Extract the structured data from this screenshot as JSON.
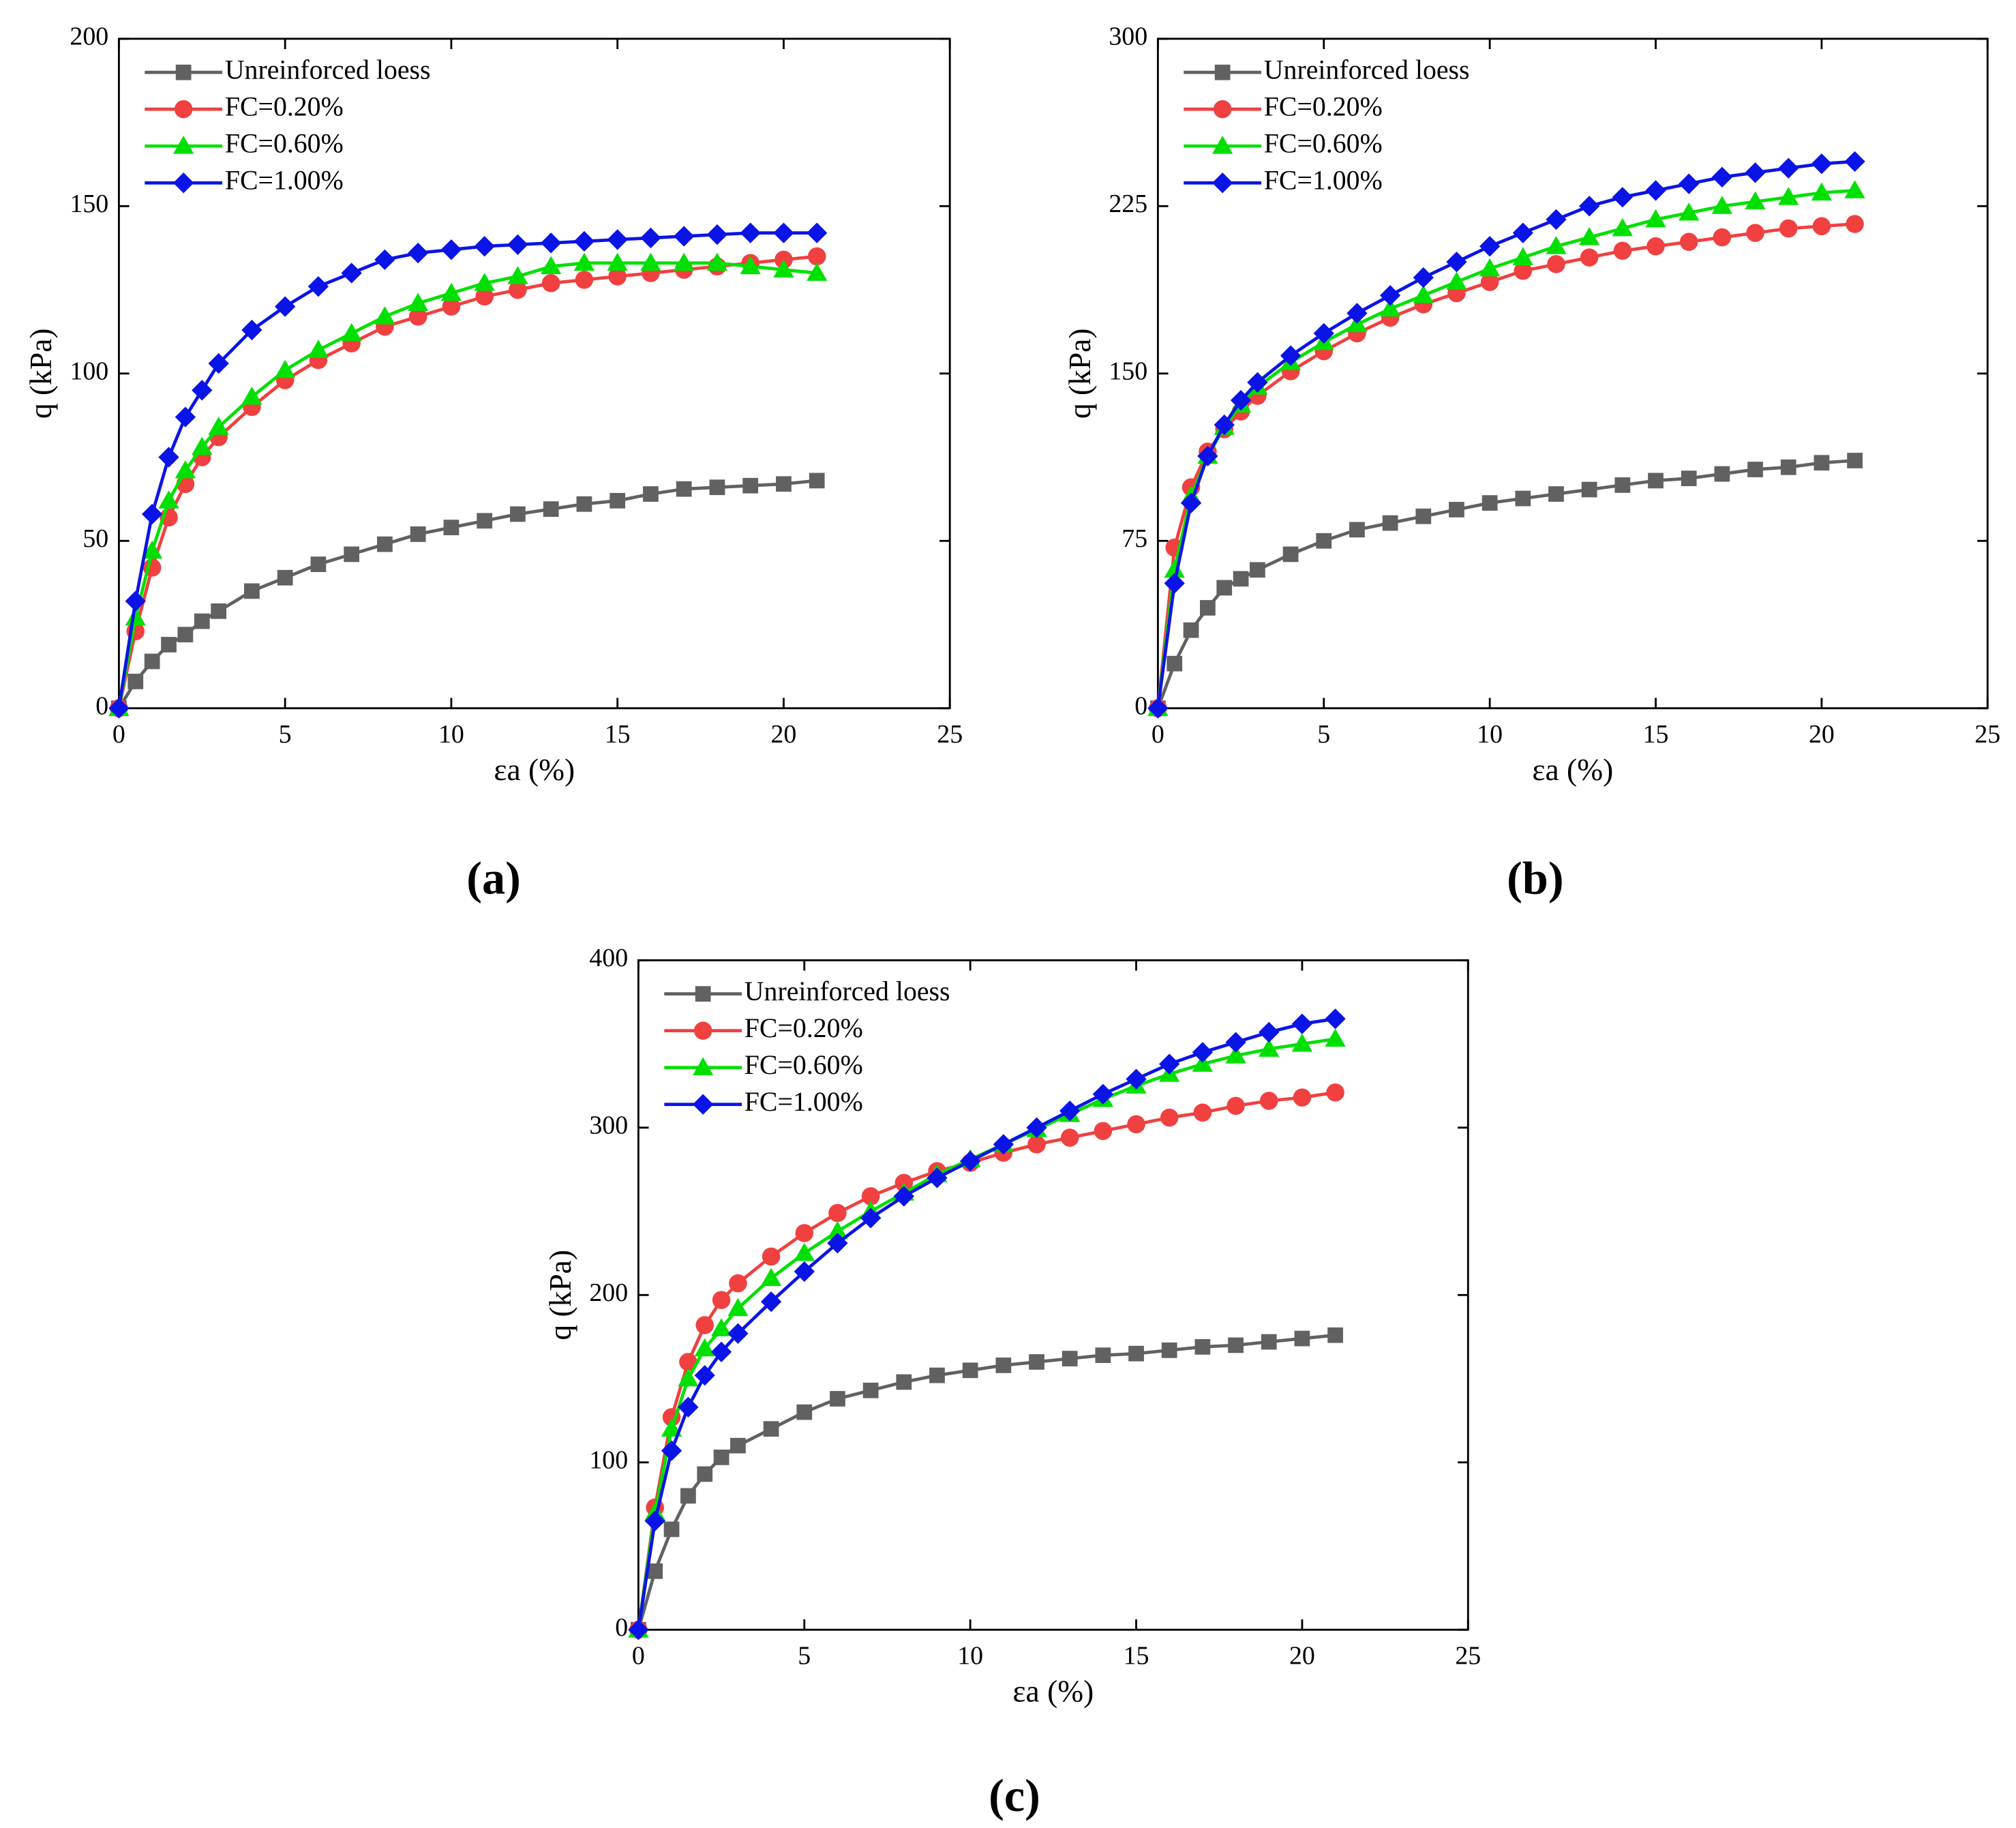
{
  "chart_data": [
    {
      "type": "line",
      "panel": "(a)",
      "xlabel": "εa (%)",
      "ylabel": "q (kPa)",
      "xlim": [
        0,
        25
      ],
      "xticks": [
        0,
        5,
        10,
        15,
        20,
        25
      ],
      "ylim": [
        0,
        200
      ],
      "yticks": [
        0,
        50,
        100,
        150,
        200
      ],
      "x": [
        0,
        0.5,
        1,
        1.5,
        2,
        2.5,
        3,
        4,
        5,
        6,
        7,
        8,
        9,
        10,
        11,
        12,
        13,
        14,
        15,
        16,
        17,
        18,
        19,
        20,
        21
      ],
      "series": [
        {
          "name": "Unreinforced loess",
          "color": "#616161",
          "marker": "square",
          "values": [
            0,
            8,
            14,
            19,
            22,
            26,
            29,
            35,
            39,
            43,
            46,
            49,
            52,
            54,
            56,
            58,
            59.5,
            61,
            62,
            64,
            65.5,
            66,
            66.5,
            67,
            68
          ]
        },
        {
          "name": "FC=0.20%",
          "color": "#f04040",
          "marker": "circle",
          "values": [
            0,
            23,
            42,
            57,
            67,
            75,
            81,
            90,
            98,
            104,
            109,
            114,
            117,
            120,
            123,
            125,
            127,
            128,
            129,
            130,
            131,
            132,
            133,
            134,
            135
          ]
        },
        {
          "name": "FC=0.60%",
          "color": "#00e000",
          "marker": "triangle",
          "values": [
            0,
            27,
            47,
            62,
            71,
            78,
            84,
            93,
            101,
            107,
            112,
            117,
            121,
            124,
            127,
            129,
            132,
            133,
            133,
            133,
            133,
            133,
            132,
            131,
            130
          ]
        },
        {
          "name": "FC=1.00%",
          "color": "#0a14e6",
          "marker": "diamond",
          "values": [
            0,
            32,
            58,
            75,
            87,
            95,
            103,
            113,
            120,
            126,
            130,
            134,
            136,
            137,
            138,
            138.5,
            139,
            139.5,
            140,
            140.5,
            141,
            141.5,
            142,
            142,
            142
          ]
        }
      ]
    },
    {
      "type": "line",
      "panel": "(b)",
      "xlabel": "εa (%)",
      "ylabel": "q (kPa)",
      "xlim": [
        0,
        25
      ],
      "xticks": [
        0,
        5,
        10,
        15,
        20,
        25
      ],
      "ylim": [
        0,
        300
      ],
      "yticks": [
        0,
        75,
        150,
        225,
        300
      ],
      "x": [
        0,
        0.5,
        1,
        1.5,
        2,
        2.5,
        3,
        4,
        5,
        6,
        7,
        8,
        9,
        10,
        11,
        12,
        13,
        14,
        15,
        16,
        17,
        18,
        19,
        20,
        21
      ],
      "series": [
        {
          "name": "Unreinforced loess",
          "color": "#616161",
          "marker": "square",
          "values": [
            0,
            20,
            35,
            45,
            54,
            58,
            62,
            69,
            75,
            80,
            83,
            86,
            89,
            92,
            94,
            96,
            98,
            100,
            102,
            103,
            105,
            107,
            108,
            110,
            111
          ]
        },
        {
          "name": "FC=0.20%",
          "color": "#f04040",
          "marker": "circle",
          "values": [
            0,
            72,
            99,
            115,
            125,
            133,
            140,
            151,
            160,
            168,
            175,
            181,
            186,
            191,
            196,
            199,
            202,
            205,
            207,
            209,
            211,
            213,
            215,
            216,
            217
          ]
        },
        {
          "name": "FC=0.60%",
          "color": "#00e000",
          "marker": "triangle",
          "values": [
            0,
            62,
            95,
            113,
            126,
            136,
            144,
            155,
            164,
            172,
            179,
            185,
            191,
            197,
            202,
            207,
            211,
            215,
            219,
            222,
            225,
            227,
            229,
            231,
            232
          ]
        },
        {
          "name": "FC=1.00%",
          "color": "#0a14e6",
          "marker": "diamond",
          "values": [
            0,
            56,
            92,
            113,
            127,
            138,
            146,
            158,
            168,
            177,
            185,
            193,
            200,
            207,
            213,
            219,
            225,
            229,
            232,
            235,
            238,
            240,
            242,
            244,
            245
          ]
        }
      ]
    },
    {
      "type": "line",
      "panel": "(c)",
      "xlabel": "εa (%)",
      "ylabel": "q (kPa)",
      "xlim": [
        0,
        25
      ],
      "xticks": [
        0,
        5,
        10,
        15,
        20,
        25
      ],
      "ylim": [
        0,
        400
      ],
      "yticks": [
        0,
        100,
        200,
        300,
        400
      ],
      "x": [
        0,
        0.5,
        1,
        1.5,
        2,
        2.5,
        3,
        4,
        5,
        6,
        7,
        8,
        9,
        10,
        11,
        12,
        13,
        14,
        15,
        16,
        17,
        18,
        19,
        20,
        21
      ],
      "series": [
        {
          "name": "Unreinforced loess",
          "color": "#616161",
          "marker": "square",
          "values": [
            0,
            35,
            60,
            80,
            93,
            103,
            110,
            120,
            130,
            138,
            143,
            148,
            152,
            155,
            158,
            160,
            162,
            164,
            165,
            167,
            169,
            170,
            172,
            174,
            176
          ]
        },
        {
          "name": "FC=0.20%",
          "color": "#f04040",
          "marker": "circle",
          "values": [
            0,
            73,
            127,
            160,
            182,
            197,
            207,
            223,
            237,
            249,
            259,
            267,
            274,
            279,
            285,
            290,
            294,
            298,
            302,
            306,
            309,
            313,
            316,
            318,
            321
          ]
        },
        {
          "name": "FC=0.60%",
          "color": "#00e000",
          "marker": "triangle",
          "values": [
            0,
            70,
            120,
            150,
            168,
            180,
            192,
            210,
            225,
            238,
            250,
            261,
            272,
            281,
            290,
            299,
            308,
            317,
            325,
            332,
            338,
            343,
            347,
            350,
            353
          ]
        },
        {
          "name": "FC=1.00%",
          "color": "#0a14e6",
          "marker": "diamond",
          "values": [
            0,
            65,
            107,
            133,
            152,
            166,
            177,
            196,
            214,
            231,
            246,
            259,
            270,
            280,
            290,
            300,
            310,
            320,
            329,
            338,
            345,
            351,
            357,
            362,
            365
          ]
        }
      ]
    }
  ]
}
